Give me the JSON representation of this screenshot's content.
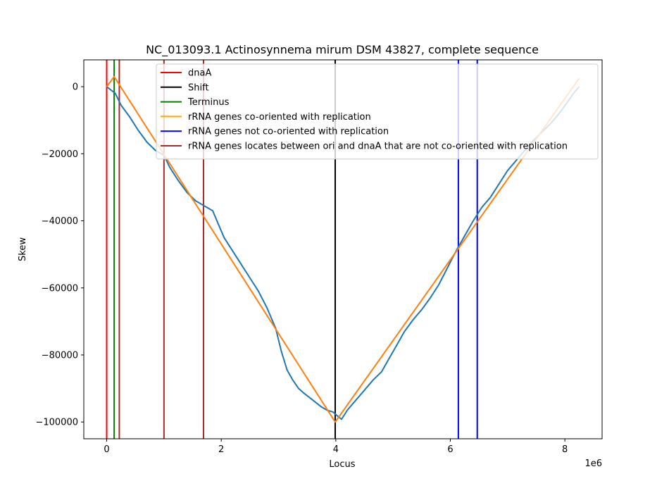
{
  "chart_data": {
    "type": "line",
    "title": "NC_013093.1 Actinosynnema mirum DSM 43827, complete sequence",
    "xlabel": "Locus",
    "ylabel": "Skew",
    "x_offset_label": "1e6",
    "xlim": [
      -400000,
      8650000
    ],
    "ylim": [
      -105000,
      8000
    ],
    "x_ticks": [
      {
        "value": 0,
        "label": "0"
      },
      {
        "value": 2000000,
        "label": "2"
      },
      {
        "value": 4000000,
        "label": "4"
      },
      {
        "value": 6000000,
        "label": "6"
      },
      {
        "value": 8000000,
        "label": "8"
      }
    ],
    "y_ticks": [
      {
        "value": 0,
        "label": "0"
      },
      {
        "value": -20000,
        "label": "−20000"
      },
      {
        "value": -40000,
        "label": "−40000"
      },
      {
        "value": -60000,
        "label": "−60000"
      },
      {
        "value": -80000,
        "label": "−80000"
      },
      {
        "value": -100000,
        "label": "−100000"
      }
    ],
    "grid": false,
    "legend_position": "top-right",
    "legend": [
      {
        "label": "dnaA",
        "color": "#ff0000"
      },
      {
        "label": "Shift",
        "color": "#000000"
      },
      {
        "label": "Terminus",
        "color": "#008000"
      },
      {
        "label": "rRNA genes co-oriented with replication",
        "color": "#ffa500"
      },
      {
        "label": "rRNA genes not co-oriented with replication",
        "color": "#0000ff"
      },
      {
        "label": "rRNA genes locates between ori and dnaA that are not co-oriented with replication",
        "color": "#a52a2a"
      }
    ],
    "vertical_lines": [
      {
        "x": 0,
        "color": "#ff0000"
      },
      {
        "x": 3990000,
        "color": "#000000"
      },
      {
        "x": 130000,
        "color": "#008000"
      },
      {
        "x": 220000,
        "color": "#a52a2a"
      },
      {
        "x": 1000000,
        "color": "#a52a2a"
      },
      {
        "x": 1690000,
        "color": "#a52a2a"
      },
      {
        "x": 6140000,
        "color": "#0000ff"
      },
      {
        "x": 6470000,
        "color": "#0000ff"
      }
    ],
    "series": [
      {
        "color": "#1f77b4",
        "x": [
          0,
          150000,
          250000,
          400000,
          550000,
          700000,
          850000,
          1000000,
          1100000,
          1250000,
          1400000,
          1550000,
          1700000,
          1850000,
          1950000,
          2050000,
          2200000,
          2350000,
          2500000,
          2650000,
          2800000,
          2950000,
          3050000,
          3150000,
          3250000,
          3350000,
          3450000,
          3600000,
          3750000,
          3850000,
          3950000,
          4050000,
          4100000,
          4200000,
          4350000,
          4500000,
          4650000,
          4800000,
          4900000,
          5050000,
          5200000,
          5350000,
          5500000,
          5650000,
          5800000,
          5950000,
          6100000,
          6250000,
          6400000,
          6550000,
          6700000,
          6850000,
          7000000,
          7150000,
          7300000,
          7450000,
          7600000,
          7750000,
          7900000,
          8050000,
          8150000,
          8250000
        ],
        "y": [
          0,
          -2000,
          -5500,
          -9000,
          -13000,
          -16500,
          -19000,
          -20500,
          -24000,
          -28000,
          -31500,
          -34000,
          -35500,
          -37000,
          -41000,
          -45000,
          -49000,
          -53000,
          -57000,
          -61000,
          -66000,
          -72000,
          -79000,
          -84500,
          -87500,
          -90000,
          -91500,
          -93500,
          -95500,
          -96500,
          -97000,
          -98500,
          -99200,
          -96500,
          -93500,
          -90500,
          -87500,
          -85000,
          -82000,
          -77500,
          -73000,
          -69500,
          -66500,
          -63000,
          -59000,
          -54000,
          -49000,
          -44500,
          -40000,
          -36000,
          -33000,
          -29000,
          -25000,
          -22000,
          -19000,
          -16000,
          -13500,
          -11000,
          -8000,
          -4500,
          -2000,
          0
        ]
      },
      {
        "color": "#ff7f0e",
        "x": [
          0,
          130000,
          3990000,
          8250000
        ],
        "y": [
          0,
          3000,
          -100000,
          2500
        ]
      }
    ]
  }
}
